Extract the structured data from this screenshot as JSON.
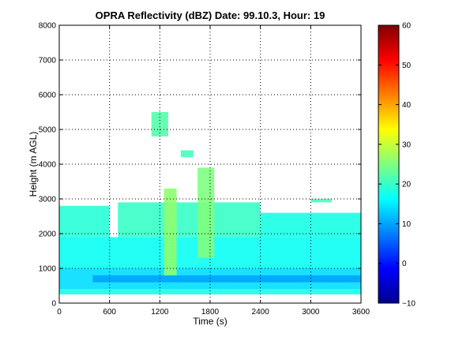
{
  "chart_data": {
    "type": "heatmap",
    "title": "OPRA Reflectivity (dBZ)  Date: 99.10.3, Hour: 19",
    "xlabel": "Time (s)",
    "ylabel": "Height (m AGL)",
    "xlim": [
      0,
      3600
    ],
    "ylim": [
      0,
      8000
    ],
    "xticks": [
      0,
      600,
      1200,
      1800,
      2400,
      3000,
      3600
    ],
    "yticks": [
      0,
      1000,
      2000,
      3000,
      4000,
      5000,
      6000,
      7000,
      8000
    ],
    "grid": true,
    "colormap": "jet",
    "colorbar": {
      "range": [
        -10,
        60
      ],
      "ticks": [
        -10,
        0,
        10,
        20,
        30,
        40,
        50,
        60
      ]
    },
    "echo_regions": [
      {
        "x": [
          0,
          3600
        ],
        "y": [
          250,
          400
        ],
        "value": 18
      },
      {
        "x": [
          0,
          3600
        ],
        "y": [
          400,
          1000
        ],
        "value": 14
      },
      {
        "x": [
          400,
          3600
        ],
        "y": [
          600,
          800
        ],
        "value": 10
      },
      {
        "x": [
          0,
          3600
        ],
        "y": [
          1000,
          1900
        ],
        "value": 17
      },
      {
        "x": [
          0,
          600
        ],
        "y": [
          1900,
          2800
        ],
        "value": 19
      },
      {
        "x": [
          700,
          1500
        ],
        "y": [
          1900,
          2900
        ],
        "value": 20
      },
      {
        "x": [
          1500,
          2400
        ],
        "y": [
          1900,
          2900
        ],
        "value": 20
      },
      {
        "x": [
          2400,
          3600
        ],
        "y": [
          1900,
          2600
        ],
        "value": 18
      },
      {
        "x": [
          1250,
          1400
        ],
        "y": [
          800,
          3300
        ],
        "value": 26
      },
      {
        "x": [
          1650,
          1850
        ],
        "y": [
          1300,
          3900
        ],
        "value": 25
      },
      {
        "x": [
          1100,
          1300
        ],
        "y": [
          4800,
          5500
        ],
        "value": 22
      },
      {
        "x": [
          1450,
          1600
        ],
        "y": [
          4200,
          4400
        ],
        "value": 21
      },
      {
        "x": [
          3000,
          3250
        ],
        "y": [
          2900,
          3000
        ],
        "value": 21
      }
    ]
  }
}
